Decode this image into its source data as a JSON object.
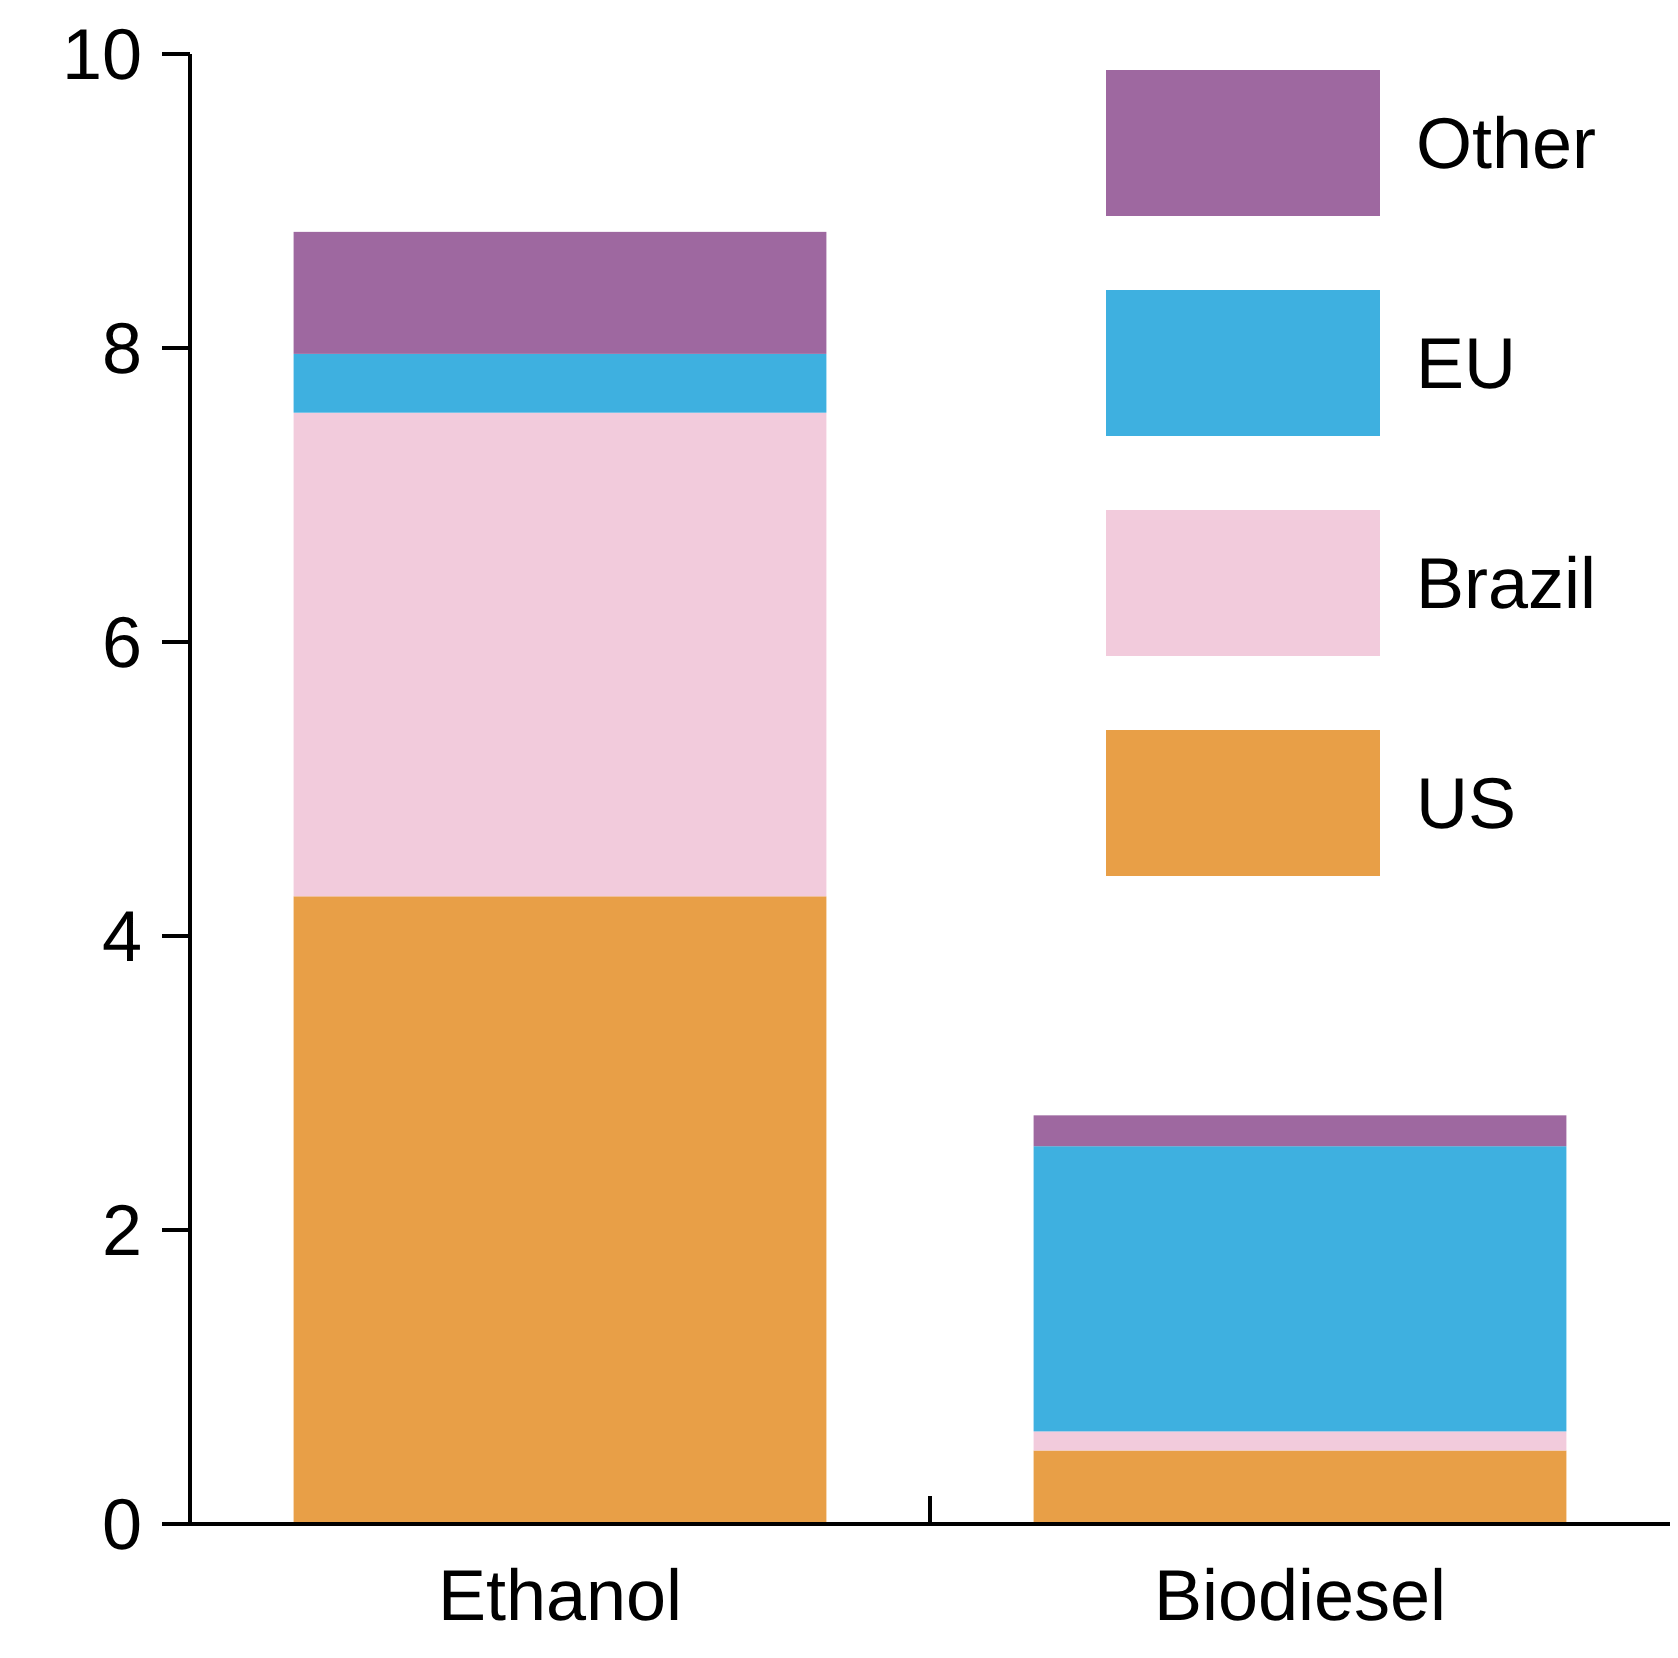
{
  "chart_data": {
    "type": "bar",
    "stacked": true,
    "categories": [
      "Ethanol",
      "Biodiesel"
    ],
    "series": [
      {
        "name": "US",
        "color": "#e89f47",
        "values": [
          4.27,
          0.5
        ]
      },
      {
        "name": "Brazil",
        "color": "#f2cbdc",
        "values": [
          3.29,
          0.13
        ]
      },
      {
        "name": "EU",
        "color": "#3eb0e0",
        "values": [
          0.4,
          1.94
        ]
      },
      {
        "name": "Other",
        "color": "#9e68a0",
        "values": [
          0.83,
          0.21
        ]
      }
    ],
    "ylim": [
      0,
      10
    ],
    "yticks": [
      0,
      2,
      4,
      6,
      8,
      10
    ],
    "grid": false,
    "legend": "top right"
  }
}
